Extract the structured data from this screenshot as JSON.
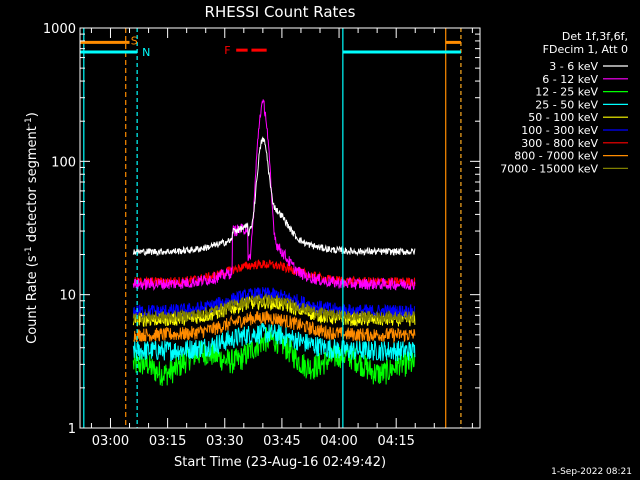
{
  "chart_data": {
    "type": "line",
    "title": "RHESSI Count Rates",
    "xlabel": "Start Time (23-Aug-16 02:49:42)",
    "ylabel": "Count Rate (s⁻¹ detector segment⁻¹)",
    "ylabel_parts": {
      "a": "Count Rate (s",
      "b": "-1",
      "c": " detector segment",
      "d": "-1",
      "e": ")"
    },
    "yscale": "log",
    "ylim": [
      1,
      1000
    ],
    "xlim_minutes": [
      -8,
      97
    ],
    "x_tick_labels": [
      {
        "label": "03:00",
        "minute": 0
      },
      {
        "label": "03:15",
        "minute": 15
      },
      {
        "label": "03:30",
        "minute": 30
      },
      {
        "label": "03:45",
        "minute": 45
      },
      {
        "label": "04:00",
        "minute": 60
      },
      {
        "label": "04:15",
        "minute": 75
      }
    ],
    "y_tick_labels": [
      {
        "label": "1",
        "value": 1
      },
      {
        "label": "10",
        "value": 10
      },
      {
        "label": "100",
        "value": 100
      },
      {
        "label": "1000",
        "value": 1000
      }
    ],
    "legend": {
      "header": [
        "Det 1f,3f,6f,",
        "FDecim 1, Att 0"
      ],
      "position": "top-right"
    },
    "series": [
      {
        "name": "3 - 6 keV",
        "color": "#ffffff",
        "baseline": 21,
        "noise": 0.06,
        "peak": 130,
        "pre": 6,
        "wing": 15
      },
      {
        "name": "6 - 12 keV",
        "color": "#ff00ff",
        "baseline": 12,
        "noise": 0.1,
        "peak": 260,
        "pre": 22,
        "wing": 7
      },
      {
        "name": "12 - 25 keV",
        "color": "#00ff00",
        "baseline": 3.0,
        "noise": 0.22,
        "peak": 0,
        "pre": 0,
        "wing": 0
      },
      {
        "name": "25 - 50 keV",
        "color": "#00ffff",
        "baseline": 3.8,
        "noise": 0.18,
        "peak": 0,
        "pre": 0,
        "wing": 0
      },
      {
        "name": "50 - 100 keV",
        "color": "#ffff00",
        "baseline": 6.5,
        "noise": 0.12,
        "peak": 0,
        "pre": 0,
        "wing": 0
      },
      {
        "name": "100 - 300 keV",
        "color": "#0000ff",
        "baseline": 7.5,
        "noise": 0.12,
        "peak": 0,
        "pre": 0,
        "wing": 0
      },
      {
        "name": "300 - 800 keV",
        "color": "#ff0000",
        "baseline": 12.5,
        "noise": 0.08,
        "peak": 0,
        "pre": 0,
        "wing": 0
      },
      {
        "name": "800 - 7000 keV",
        "color": "#ff8c00",
        "baseline": 5.0,
        "noise": 0.12,
        "peak": 0,
        "pre": 0,
        "wing": 0
      },
      {
        "name": "7000 - 15000 keV",
        "color": "#808000",
        "baseline": 6.8,
        "noise": 0.1,
        "peak": 0,
        "pre": 0,
        "wing": 0
      }
    ],
    "data_range_minutes": [
      6,
      80
    ],
    "flare_peak_minute": 40,
    "attenuator_marker": {
      "label": "F",
      "start_minute": 33,
      "end_minute": 41,
      "level": 770,
      "color": "#ff0000"
    },
    "night_marker": {
      "label": "N",
      "color": "#00ffff",
      "level": 660,
      "lines_minutes": [
        -7,
        7,
        61,
        92
      ]
    },
    "saa_marker": {
      "label": "S",
      "color": "#ff8c00",
      "level": 780,
      "lines_minutes": [
        4,
        88,
        92
      ]
    },
    "footer_date": "1-Sep-2022 08:21"
  }
}
